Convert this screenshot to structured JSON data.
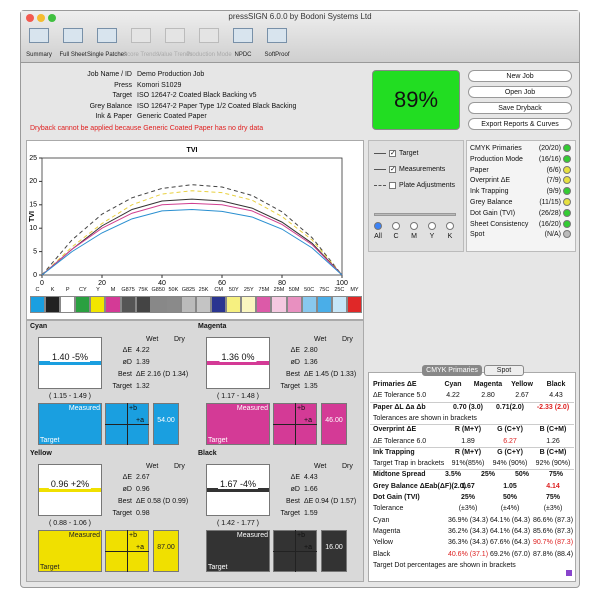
{
  "window": {
    "title": "pressSIGN 6.0.0 by Bodoni Systems Ltd"
  },
  "toolbar": [
    {
      "label": "Summary",
      "enabled": true
    },
    {
      "label": "Full Sheet",
      "enabled": true
    },
    {
      "label": "Single Patches",
      "enabled": true
    },
    {
      "label": "Score Trends",
      "enabled": false
    },
    {
      "label": "Value Trends",
      "enabled": false
    },
    {
      "label": "Production Mode",
      "enabled": false
    },
    {
      "label": "NPDC",
      "enabled": true
    },
    {
      "label": "SoftProof",
      "enabled": true
    }
  ],
  "job": {
    "fields": [
      {
        "label": "Job Name / ID",
        "value": "Demo Production Job"
      },
      {
        "label": "Press",
        "value": "Komori S1029"
      },
      {
        "label": "Target",
        "value": "ISO 12647-2 Coated Black Backing v5"
      },
      {
        "label": "Grey Balance",
        "value": "ISO 12647-2 Paper Type 1/2 Coated Black Backing"
      },
      {
        "label": "Ink & Paper",
        "value": "Generic Coated Paper"
      }
    ],
    "warning": "Dryback cannot be applied because Generic Coated Paper has no dry data"
  },
  "score": "89%",
  "buttons": [
    "New Job",
    "Open Job",
    "Save Dryback",
    "Export Reports & Curves"
  ],
  "chart_data": {
    "type": "line",
    "title": "TVI",
    "y_label": "TVI",
    "x": [
      0,
      10,
      20,
      30,
      40,
      50,
      60,
      70,
      80,
      90,
      100
    ],
    "series": [
      {
        "color": "#444444",
        "dash": true,
        "values": [
          0,
          7.5,
          13,
          16.5,
          18.5,
          19.3,
          18.8,
          17,
          13.5,
          8,
          0
        ]
      },
      {
        "color": "#e8d040",
        "dash": true,
        "values": [
          0,
          6,
          11,
          15,
          17.3,
          18,
          17.6,
          16,
          12.5,
          7.5,
          0
        ]
      },
      {
        "color": "#333333",
        "dash": false,
        "values": [
          0,
          5.5,
          10.5,
          14,
          15.8,
          16.2,
          15.8,
          14.3,
          11.3,
          6.8,
          0
        ]
      },
      {
        "color": "#d04090",
        "dash": false,
        "values": [
          0,
          5.5,
          10,
          13.2,
          15,
          15.3,
          15,
          13.7,
          10.8,
          6.5,
          0
        ]
      },
      {
        "color": "#2a8fd0",
        "dash": false,
        "values": [
          0,
          5,
          9,
          12,
          13.7,
          14,
          13.6,
          12.4,
          9.8,
          5.8,
          0
        ]
      }
    ],
    "xlim": [
      0,
      100
    ],
    "ylim": [
      0,
      25
    ],
    "xticks": [
      0,
      20,
      40,
      60,
      80,
      100
    ],
    "yticks": [
      0,
      5,
      10,
      15,
      20,
      25
    ],
    "grid": false
  },
  "patches": [
    {
      "label": "C",
      "color": "#1a9fe0"
    },
    {
      "label": "K",
      "color": "#222222"
    },
    {
      "label": "P",
      "color": "#ffffff"
    },
    {
      "label": "CY",
      "color": "#2aa040"
    },
    {
      "label": "Y",
      "color": "#f2e600"
    },
    {
      "label": "M",
      "color": "#d43a96"
    },
    {
      "label": "G875",
      "color": "#555555"
    },
    {
      "label": "75K",
      "color": "#444444"
    },
    {
      "label": "G850",
      "color": "#888888"
    },
    {
      "label": "50K",
      "color": "#8a8a8a"
    },
    {
      "label": "G825",
      "color": "#bbbbbb"
    },
    {
      "label": "25K",
      "color": "#c4c4c4"
    },
    {
      "label": "CM",
      "color": "#2a3590"
    },
    {
      "label": "50Y",
      "color": "#f6f080"
    },
    {
      "label": "25Y",
      "color": "#faf6c0"
    },
    {
      "label": "75M",
      "color": "#dc5aa8"
    },
    {
      "label": "25M",
      "color": "#f4c8e0"
    },
    {
      "label": "50M",
      "color": "#e890c0"
    },
    {
      "label": "50C",
      "color": "#88c8ee"
    },
    {
      "label": "75C",
      "color": "#4aaee8"
    },
    {
      "label": "25C",
      "color": "#c6e6f8"
    },
    {
      "label": "MY",
      "color": "#e02828"
    }
  ],
  "display_options": {
    "checkboxes": [
      {
        "label": "Target",
        "checked": true
      },
      {
        "label": "Measurements",
        "checked": true
      },
      {
        "label": "Plate Adjustments",
        "checked": false
      }
    ],
    "radios": [
      {
        "label": "All",
        "selected": true
      },
      {
        "label": "C",
        "selected": false
      },
      {
        "label": "M",
        "selected": false
      },
      {
        "label": "Y",
        "selected": false
      },
      {
        "label": "K",
        "selected": false
      }
    ]
  },
  "status": [
    {
      "label": "CMYK Primaries",
      "score": "(20/20)",
      "light": "#33cc33"
    },
    {
      "label": "Production Mode",
      "score": "(16/16)",
      "light": "#33cc33"
    },
    {
      "label": "Paper",
      "score": "(6/6)",
      "light": "#e6e040"
    },
    {
      "label": "Overprint ΔE",
      "score": "(7/9)",
      "light": "#e6e040"
    },
    {
      "label": "Ink Trapping",
      "score": "(9/9)",
      "light": "#33cc33"
    },
    {
      "label": "Grey Balance",
      "score": "(11/15)",
      "light": "#e6e040"
    },
    {
      "label": "Dot Gain (TVI)",
      "score": "(26/28)",
      "light": "#33cc33"
    },
    {
      "label": "Sheet Consistency",
      "score": "(16/20)",
      "light": "#33cc33"
    },
    {
      "label": "Spot",
      "score": "(N/A)",
      "light": "#bbbbbb"
    }
  ],
  "inks": [
    {
      "name": "Cyan",
      "color": "#1a9fe0",
      "gauge": "1.40 -5%",
      "range": "( 1.15 - 1.49 )",
      "headers": [
        "Wet",
        "Dry"
      ],
      "rows": [
        [
          "ΔE",
          "4.22"
        ],
        [
          "øD",
          "1.39"
        ],
        [
          "Best",
          "ΔE 2.16 (D 1.34)"
        ],
        [
          "Target",
          "1.32"
        ]
      ],
      "lab": {
        "measured": "Measured",
        "target": "Target",
        "b": "+b",
        "a": "+a",
        "value": "54.00"
      }
    },
    {
      "name": "Magenta",
      "color": "#d43a96",
      "gauge": "1.36 0%",
      "range": "( 1.17 - 1.48 )",
      "headers": [
        "Wet",
        "Dry"
      ],
      "rows": [
        [
          "ΔE",
          "2.80"
        ],
        [
          "øD",
          "1.36"
        ],
        [
          "Best",
          "ΔE 1.45 (D 1.33)"
        ],
        [
          "Target",
          "1.35"
        ]
      ],
      "lab": {
        "measured": "Measured",
        "target": "Target",
        "b": "+b",
        "a": "+a",
        "value": "46.00"
      }
    },
    {
      "name": "Yellow",
      "color": "#f0e000",
      "gauge": "0.96 +2%",
      "range": "( 0.88 - 1.06 )",
      "headers": [
        "Wet",
        "Dry"
      ],
      "rows": [
        [
          "ΔE",
          "2.67"
        ],
        [
          "øD",
          "0.96"
        ],
        [
          "Best",
          "ΔE 0.58 (D 0.99)"
        ],
        [
          "Target",
          "0.98"
        ]
      ],
      "lab": {
        "measured": "Measured",
        "target": "Target",
        "b": "+b",
        "a": "+a",
        "value": "87.00"
      }
    },
    {
      "name": "Black",
      "color": "#333333",
      "gauge": "1.67 -4%",
      "range": "( 1.42 - 1.77 )",
      "headers": [
        "Wet",
        "Dry"
      ],
      "rows": [
        [
          "ΔE",
          "4.43"
        ],
        [
          "øD",
          "1.66"
        ],
        [
          "Best",
          "ΔE 0.94 (D 1.57)"
        ],
        [
          "Target",
          "1.59"
        ]
      ],
      "lab": {
        "measured": "Measured",
        "target": "Target",
        "b": "+b",
        "a": "+a",
        "value": "16.00"
      }
    }
  ],
  "results": {
    "tabs": [
      {
        "label": "CMYK Primaries",
        "active": true
      },
      {
        "label": "Spot",
        "active": false
      }
    ],
    "rows": [
      {
        "bold": true,
        "cells": [
          "Primaries ΔE",
          "Cyan",
          "Magenta",
          "Yellow",
          "Black"
        ]
      },
      {
        "bold": false,
        "cells": [
          "ΔE Tolerance 5.0",
          "4.22",
          "2.80",
          "2.67",
          "4.43"
        ]
      },
      {
        "bold": true,
        "cells": [
          "Paper ΔL Δa Δb",
          "0.70 (3.0)",
          "0.71(2.0)",
          {
            "text": "-2.33 (2.0)",
            "color": "#dd2222"
          }
        ]
      },
      {
        "bold": false,
        "cells": [
          "Tolerances are shown in brackets"
        ]
      },
      {
        "bold": true,
        "cells": [
          "Overprint ΔE",
          "R (M+Y)",
          "G (C+Y)",
          "B (C+M)"
        ]
      },
      {
        "bold": false,
        "cells": [
          "ΔE Tolerance 6.0",
          "1.89",
          {
            "text": "6.27",
            "color": "#dd2222"
          },
          "1.26"
        ]
      },
      {
        "bold": true,
        "cells": [
          "Ink Trapping",
          "R (M+Y)",
          "G (C+Y)",
          "B (C+M)"
        ]
      },
      {
        "bold": false,
        "cells": [
          "Target Trap in brackets",
          "91%(85%)",
          "94% (90%)",
          "92% (90%)"
        ]
      },
      {
        "bold": true,
        "cells": [
          "Midtone Spread",
          "3.5%",
          "25%",
          "50%",
          "75%"
        ]
      },
      {
        "bold": true,
        "cells": [
          "Grey Balance ΔEab(ΔF)(2.0)",
          "1.67",
          "1.05",
          {
            "text": "4.14",
            "color": "#dd2222"
          }
        ]
      },
      {
        "bold": true,
        "cells": [
          "Dot Gain (TVI)",
          "25%",
          "50%",
          "75%"
        ]
      },
      {
        "bold": false,
        "cells": [
          "Tolerance",
          "(±3%)",
          "(±4%)",
          "(±3%)"
        ]
      },
      {
        "bold": false,
        "cells": [
          "Cyan",
          "36.9% (34.3)",
          "64.1% (64.3)",
          "86.6% (87.3)"
        ]
      },
      {
        "bold": false,
        "cells": [
          "Magenta",
          "36.2% (34.3)",
          "64.1% (64.3)",
          "85.6% (87.3)"
        ]
      },
      {
        "bold": false,
        "cells": [
          "Yellow",
          "36.3% (34.3)",
          "67.6% (64.3)",
          {
            "text": "90.7% (87.3)",
            "color": "#dd2222"
          }
        ]
      },
      {
        "bold": false,
        "cells": [
          {
            "text": "Black",
            "color": "#111111"
          },
          {
            "text": "40.6% (37.1)",
            "color": "#dd2222"
          },
          "69.2% (67.0)",
          "87.8% (88.4)"
        ]
      },
      {
        "bold": false,
        "cells": [
          "Target Dot percentages are shown in brackets"
        ]
      }
    ]
  }
}
